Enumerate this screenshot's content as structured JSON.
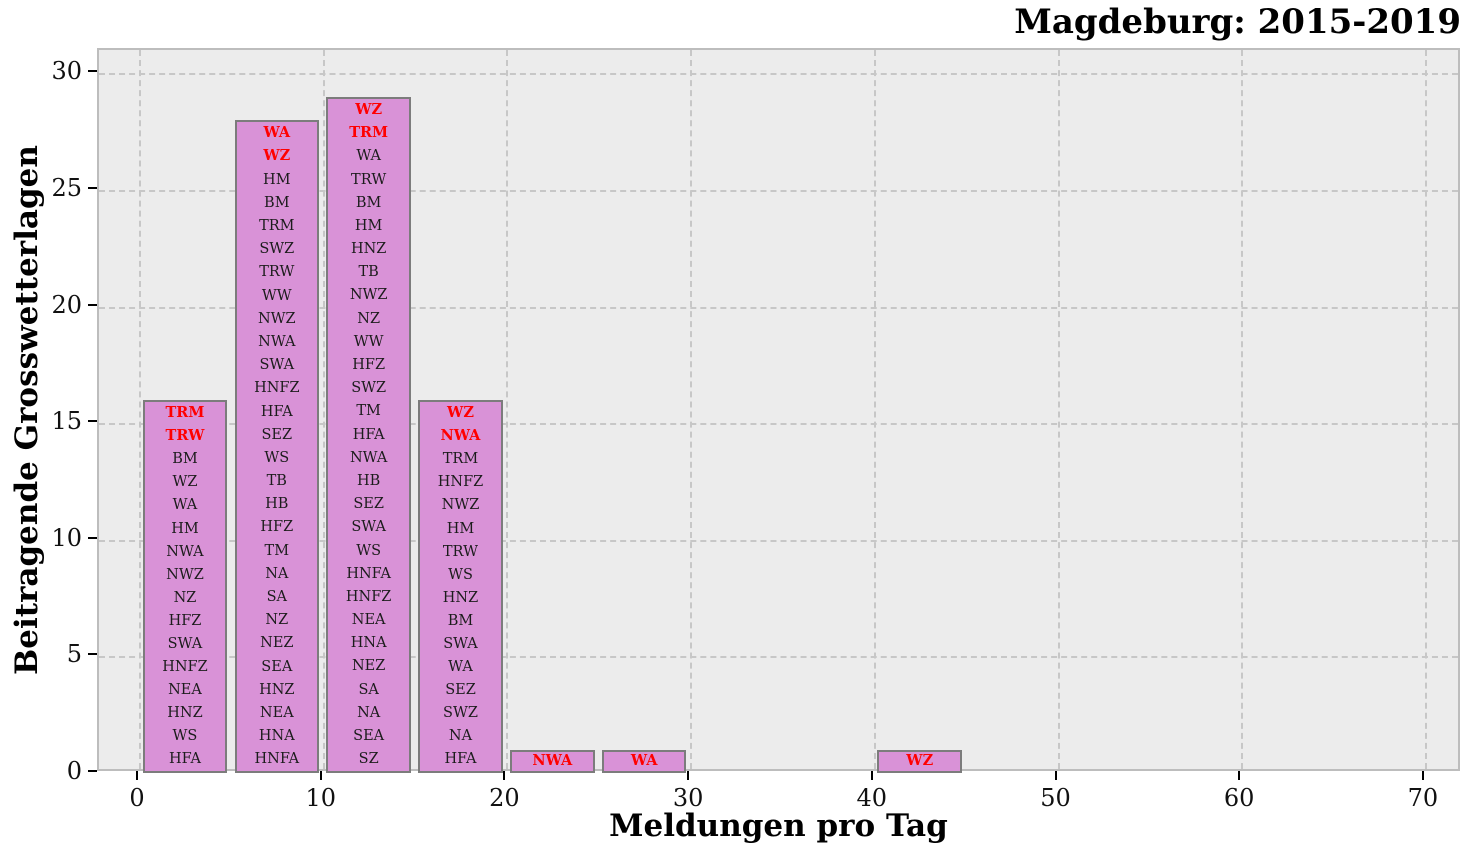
{
  "chart_data": {
    "type": "bar",
    "title": "Magdeburg: 2015-2019",
    "xlabel": "Meldungen pro Tag",
    "ylabel": "Beitragende Grosswetterlagen",
    "xlim": [
      -2.18,
      72.02
    ],
    "ylim": [
      0,
      31
    ],
    "xticks": [
      0,
      10,
      20,
      30,
      40,
      50,
      60,
      70
    ],
    "yticks": [
      0,
      5,
      10,
      15,
      20,
      25,
      30
    ],
    "grid": "dashed, on, light-gray",
    "legend": "none",
    "bin_width": 5,
    "bar_inset": 0.2,
    "categories": [
      "0-5",
      "5-10",
      "10-15",
      "15-20",
      "20-25",
      "25-30",
      "40-45"
    ],
    "values": [
      16,
      28,
      29,
      16,
      1,
      1,
      1
    ],
    "colors": {
      "plot_background": "#ececec",
      "figure_background": "#ffffff",
      "grid": "#c7c7c7",
      "bar_fill": "#d992d7",
      "bar_edge": "#7c7c7c",
      "label_text": "#1c1c1c",
      "highlight_text": "#ff0000",
      "axis_text": "#111111"
    },
    "bars": [
      {
        "bin_start": 0,
        "bin_end": 5,
        "value": 16,
        "labels_red": [
          "TRM",
          "TRW"
        ],
        "labels_black": [
          "BM",
          "WZ",
          "WA",
          "HM",
          "NWA",
          "NWZ",
          "NZ",
          "HFZ",
          "SWA",
          "HNFZ",
          "NEA",
          "HNZ",
          "WS",
          "HFA"
        ]
      },
      {
        "bin_start": 5,
        "bin_end": 10,
        "value": 28,
        "labels_red": [
          "WA",
          "WZ"
        ],
        "labels_black": [
          "HM",
          "BM",
          "TRM",
          "SWZ",
          "TRW",
          "WW",
          "NWZ",
          "NWA",
          "SWA",
          "HNFZ",
          "HFA",
          "SEZ",
          "WS",
          "TB",
          "HB",
          "HFZ",
          "TM",
          "NA",
          "SA",
          "NZ",
          "NEZ",
          "SEA",
          "HNZ",
          "NEA",
          "HNA",
          "HNFA"
        ]
      },
      {
        "bin_start": 10,
        "bin_end": 15,
        "value": 29,
        "labels_red": [
          "WZ",
          "TRM"
        ],
        "labels_black": [
          "WA",
          "TRW",
          "BM",
          "HM",
          "HNZ",
          "TB",
          "NWZ",
          "NZ",
          "WW",
          "HFZ",
          "SWZ",
          "TM",
          "HFA",
          "NWA",
          "HB",
          "SEZ",
          "SWA",
          "WS",
          "HNFA",
          "HNFZ",
          "NEA",
          "HNA",
          "NEZ",
          "SA",
          "NA",
          "SEA",
          "SZ"
        ]
      },
      {
        "bin_start": 15,
        "bin_end": 20,
        "value": 16,
        "labels_red": [
          "WZ",
          "NWA"
        ],
        "labels_black": [
          "TRM",
          "HNFZ",
          "NWZ",
          "HM",
          "TRW",
          "WS",
          "HNZ",
          "BM",
          "SWA",
          "WA",
          "SEZ",
          "SWZ",
          "NA",
          "HFA"
        ]
      },
      {
        "bin_start": 20,
        "bin_end": 25,
        "value": 1,
        "labels_red": [
          "NWA"
        ],
        "labels_black": []
      },
      {
        "bin_start": 25,
        "bin_end": 30,
        "value": 1,
        "labels_red": [
          "WA"
        ],
        "labels_black": []
      },
      {
        "bin_start": 40,
        "bin_end": 45,
        "value": 1,
        "labels_red": [
          "WZ"
        ],
        "labels_black": []
      }
    ]
  }
}
